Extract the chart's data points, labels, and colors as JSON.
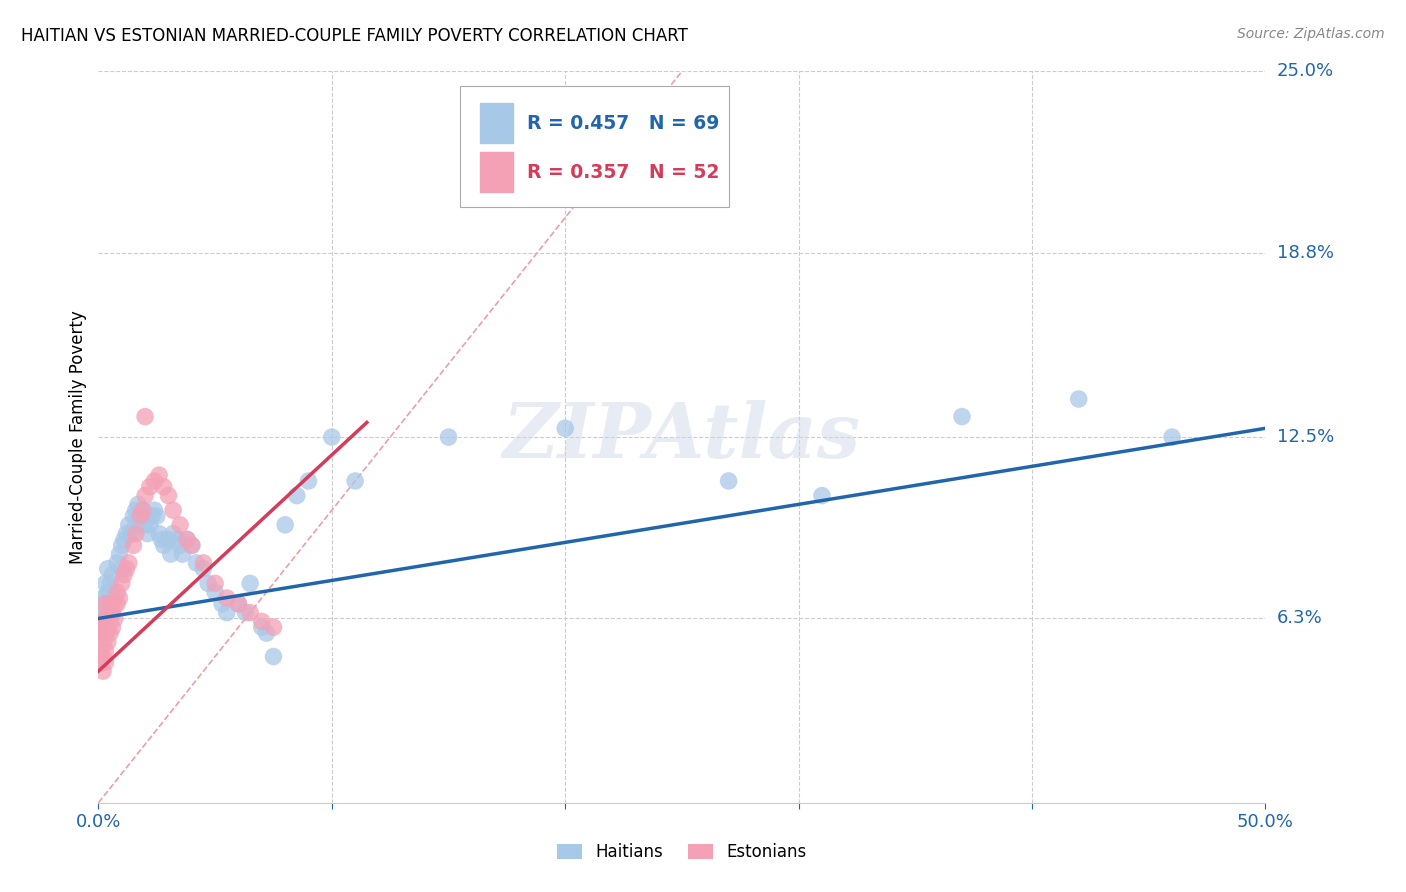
{
  "title": "HAITIAN VS ESTONIAN MARRIED-COUPLE FAMILY POVERTY CORRELATION CHART",
  "source": "Source: ZipAtlas.com",
  "ylabel": "Married-Couple Family Poverty",
  "xlim": [
    0.0,
    0.5
  ],
  "ylim": [
    0.0,
    0.25
  ],
  "xticks": [
    0.0,
    0.1,
    0.2,
    0.3,
    0.4,
    0.5
  ],
  "xticklabels": [
    "0.0%",
    "",
    "",
    "",
    "",
    "50.0%"
  ],
  "ytick_labels_right": [
    "6.3%",
    "12.5%",
    "18.8%",
    "25.0%"
  ],
  "ytick_vals_right": [
    0.063,
    0.125,
    0.188,
    0.25
  ],
  "haitian_color": "#a8c8e8",
  "estonian_color": "#f4a0b5",
  "haitian_line_color": "#2166ac",
  "estonian_line_color": "#d63b5a",
  "watermark": "ZIPAtlas",
  "haitian_x": [
    0.001,
    0.001,
    0.001,
    0.002,
    0.002,
    0.003,
    0.003,
    0.004,
    0.004,
    0.005,
    0.005,
    0.005,
    0.006,
    0.007,
    0.008,
    0.009,
    0.01,
    0.01,
    0.011,
    0.012,
    0.013,
    0.014,
    0.015,
    0.016,
    0.016,
    0.017,
    0.018,
    0.019,
    0.02,
    0.021,
    0.022,
    0.023,
    0.024,
    0.025,
    0.026,
    0.027,
    0.028,
    0.03,
    0.031,
    0.032,
    0.034,
    0.035,
    0.036,
    0.038,
    0.04,
    0.042,
    0.045,
    0.047,
    0.05,
    0.053,
    0.055,
    0.06,
    0.063,
    0.065,
    0.07,
    0.072,
    0.075,
    0.08,
    0.085,
    0.09,
    0.1,
    0.11,
    0.15,
    0.2,
    0.27,
    0.31,
    0.37,
    0.42,
    0.46
  ],
  "haitian_y": [
    0.068,
    0.062,
    0.058,
    0.07,
    0.065,
    0.075,
    0.068,
    0.072,
    0.08,
    0.065,
    0.068,
    0.075,
    0.078,
    0.07,
    0.082,
    0.085,
    0.08,
    0.088,
    0.09,
    0.092,
    0.095,
    0.092,
    0.098,
    0.095,
    0.1,
    0.102,
    0.098,
    0.1,
    0.095,
    0.092,
    0.095,
    0.098,
    0.1,
    0.098,
    0.092,
    0.09,
    0.088,
    0.09,
    0.085,
    0.092,
    0.09,
    0.088,
    0.085,
    0.09,
    0.088,
    0.082,
    0.08,
    0.075,
    0.072,
    0.068,
    0.065,
    0.068,
    0.065,
    0.075,
    0.06,
    0.058,
    0.05,
    0.095,
    0.105,
    0.11,
    0.125,
    0.11,
    0.125,
    0.128,
    0.11,
    0.105,
    0.132,
    0.138,
    0.125
  ],
  "estonian_x": [
    0.001,
    0.001,
    0.001,
    0.001,
    0.002,
    0.002,
    0.002,
    0.002,
    0.003,
    0.003,
    0.003,
    0.003,
    0.003,
    0.004,
    0.004,
    0.004,
    0.005,
    0.005,
    0.005,
    0.006,
    0.006,
    0.007,
    0.007,
    0.008,
    0.008,
    0.009,
    0.01,
    0.011,
    0.012,
    0.013,
    0.015,
    0.016,
    0.018,
    0.019,
    0.02,
    0.022,
    0.024,
    0.026,
    0.028,
    0.03,
    0.032,
    0.035,
    0.038,
    0.04,
    0.045,
    0.05,
    0.055,
    0.06,
    0.065,
    0.07,
    0.075,
    0.02
  ],
  "estonian_y": [
    0.048,
    0.052,
    0.058,
    0.06,
    0.045,
    0.05,
    0.055,
    0.062,
    0.048,
    0.052,
    0.058,
    0.063,
    0.068,
    0.055,
    0.06,
    0.065,
    0.058,
    0.063,
    0.068,
    0.06,
    0.065,
    0.063,
    0.068,
    0.068,
    0.072,
    0.07,
    0.075,
    0.078,
    0.08,
    0.082,
    0.088,
    0.092,
    0.098,
    0.1,
    0.105,
    0.108,
    0.11,
    0.112,
    0.108,
    0.105,
    0.1,
    0.095,
    0.09,
    0.088,
    0.082,
    0.075,
    0.07,
    0.068,
    0.065,
    0.062,
    0.06,
    0.132
  ],
  "haitian_line_x": [
    0.0,
    0.5
  ],
  "haitian_line_y": [
    0.063,
    0.128
  ],
  "estonian_line_x": [
    0.0,
    0.115
  ],
  "estonian_line_y": [
    0.045,
    0.13
  ]
}
